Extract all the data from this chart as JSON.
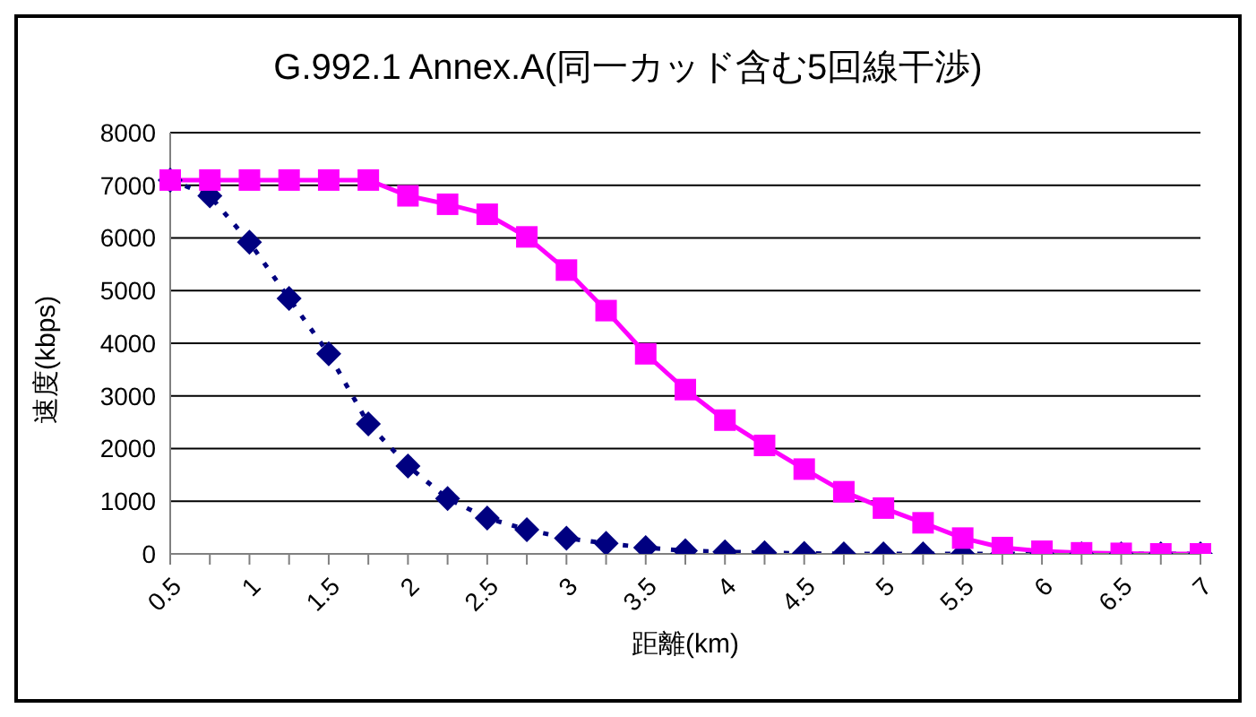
{
  "chart_data": {
    "type": "line",
    "title": "G.992.1 Annex.A(同一カッド含む5回線干渉)",
    "xlabel": "距離(km)",
    "ylabel": "速度(kbps)",
    "categories": [
      "0.5",
      null,
      "1",
      null,
      "1.5",
      null,
      "2",
      null,
      "2.5",
      null,
      "3",
      null,
      "3.5",
      null,
      "4",
      null,
      "4.5",
      null,
      "5",
      null,
      "5.5",
      null,
      "6",
      null,
      "6.5",
      null,
      "7"
    ],
    "series": [
      {
        "color": "#000080",
        "marker": "diamond",
        "line_style": "dotted",
        "values": [
          7100,
          6800,
          5920,
          4850,
          3800,
          2470,
          1670,
          1050,
          680,
          460,
          300,
          200,
          120,
          60,
          40,
          20,
          10,
          0,
          0,
          0,
          0,
          0,
          0,
          0,
          0,
          0,
          0
        ]
      },
      {
        "color": "#ff00ff",
        "marker": "square",
        "line_style": "solid",
        "values": [
          7100,
          7100,
          7100,
          7100,
          7100,
          7100,
          6800,
          6640,
          6450,
          6020,
          5390,
          4620,
          3800,
          3120,
          2540,
          2060,
          1610,
          1180,
          870,
          590,
          300,
          120,
          50,
          20,
          10,
          0,
          0
        ]
      }
    ],
    "ylim": [
      0,
      8000
    ],
    "yticks": [
      0,
      1000,
      2000,
      3000,
      4000,
      5000,
      6000,
      7000,
      8000
    ],
    "grid": "y",
    "legend": false
  }
}
